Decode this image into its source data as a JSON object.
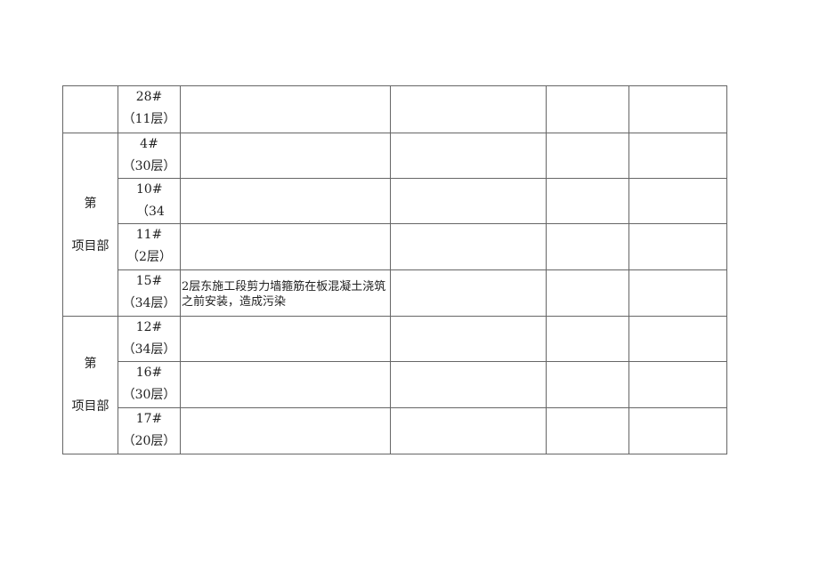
{
  "table": {
    "rows": [
      {
        "dept": "",
        "building": "28#",
        "floors": "（11层）",
        "issue": ""
      },
      {
        "dept": "第 项目部",
        "dept_lines": [
          "第",
          "项目部"
        ],
        "building": "4#",
        "floors": "（30层）",
        "issue": ""
      },
      {
        "building": "10#",
        "floors": "（34",
        "issue": ""
      },
      {
        "building": "11#",
        "floors": "（2层）",
        "issue": ""
      },
      {
        "building": "15#",
        "floors": "（34层）",
        "issue": "2层东施工段剪力墙箍筋在板混凝土浇筑之前安装，造成污染"
      },
      {
        "dept": "第 项目部",
        "dept_lines": [
          "第",
          "项目部"
        ],
        "building": "12#",
        "floors": "（34层）",
        "issue": ""
      },
      {
        "building": "16#",
        "floors": "（30层）",
        "issue": ""
      },
      {
        "building": "17#",
        "floors": "（20层）",
        "issue": ""
      }
    ]
  }
}
